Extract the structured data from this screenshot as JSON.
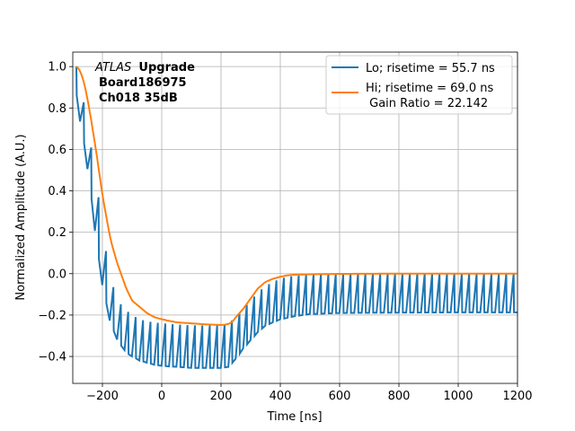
{
  "chart_data": {
    "type": "line",
    "xlabel": "Time [ns]",
    "ylabel": "Normalized Amplitude (A.U.)",
    "xlim": [
      -300,
      1200
    ],
    "ylim": [
      -0.53,
      1.07
    ],
    "xticks": [
      -200,
      0,
      200,
      400,
      600,
      800,
      1000,
      1200
    ],
    "yticks": [
      -0.4,
      -0.2,
      0.0,
      0.2,
      0.4,
      0.6,
      0.8,
      1.0
    ],
    "xtick_labels": [
      "−200",
      "0",
      "200",
      "400",
      "600",
      "800",
      "1000",
      "1200"
    ],
    "ytick_labels": [
      "−0.4",
      "−0.2",
      "0.0",
      "0.2",
      "0.4",
      "0.6",
      "0.8",
      "1.0"
    ],
    "grid": true,
    "legend_position": "top-right",
    "annotation": {
      "experiment_italic": "ATLAS",
      "experiment_bold": "Upgrade",
      "board": "Board186975",
      "channel": "Ch018 35dB"
    },
    "series": [
      {
        "name": "Lo; risetime = 55.7 ns",
        "color": "#1f77b4",
        "step_ns": 25,
        "upper": {
          "x": [
            -288,
            -275,
            -262,
            -250,
            -237,
            -225,
            -212,
            -200,
            -187,
            -175,
            -162,
            -150,
            -137,
            -125,
            -100,
            -75,
            -50,
            -25,
            0,
            50,
            100,
            150,
            200,
            225,
            250,
            275,
            300,
            325,
            350,
            375,
            400,
            425,
            450,
            500,
            600,
            800,
            1000,
            1200
          ],
          "y": [
            1.0,
            0.92,
            0.82,
            0.72,
            0.6,
            0.48,
            0.36,
            0.22,
            0.1,
            0.0,
            -0.07,
            -0.12,
            -0.15,
            -0.17,
            -0.2,
            -0.22,
            -0.23,
            -0.235,
            -0.24,
            -0.245,
            -0.25,
            -0.25,
            -0.25,
            -0.24,
            -0.21,
            -0.17,
            -0.13,
            -0.09,
            -0.06,
            -0.04,
            -0.025,
            -0.015,
            -0.01,
            -0.005,
            -0.002,
            0.0,
            0.0,
            0.0
          ]
        },
        "lower": {
          "x": [
            -288,
            -275,
            -262,
            -250,
            -237,
            -225,
            -212,
            -200,
            -187,
            -175,
            -162,
            -150,
            -137,
            -125,
            -112,
            -100,
            -75,
            -50,
            -25,
            0,
            50,
            100,
            150,
            200,
            225,
            250,
            275,
            300,
            325,
            350,
            400,
            450,
            500,
            600,
            800,
            1000,
            1200
          ],
          "y": [
            0.86,
            0.73,
            0.62,
            0.5,
            0.35,
            0.2,
            0.06,
            -0.06,
            -0.15,
            -0.23,
            -0.28,
            -0.32,
            -0.35,
            -0.37,
            -0.39,
            -0.4,
            -0.42,
            -0.43,
            -0.44,
            -0.445,
            -0.45,
            -0.455,
            -0.455,
            -0.455,
            -0.45,
            -0.41,
            -0.36,
            -0.32,
            -0.28,
            -0.25,
            -0.22,
            -0.205,
            -0.195,
            -0.19,
            -0.188,
            -0.187,
            -0.187
          ]
        }
      },
      {
        "name": "Hi; risetime = 69.0 ns\n Gain Ratio = 22.142",
        "name_line1": "Hi; risetime = 69.0 ns",
        "name_line2": " Gain Ratio = 22.142",
        "color": "#ff7f0e",
        "x": [
          -288,
          -280,
          -270,
          -260,
          -250,
          -240,
          -230,
          -220,
          -210,
          -200,
          -190,
          -180,
          -170,
          -160,
          -150,
          -140,
          -130,
          -120,
          -110,
          -100,
          -75,
          -50,
          -25,
          0,
          25,
          50,
          100,
          150,
          200,
          210,
          220,
          230,
          240,
          250,
          275,
          300,
          325,
          350,
          375,
          400,
          425,
          450,
          500,
          550,
          600,
          800,
          1000,
          1200
        ],
        "y": [
          1.0,
          0.99,
          0.96,
          0.91,
          0.84,
          0.76,
          0.67,
          0.58,
          0.48,
          0.38,
          0.3,
          0.22,
          0.15,
          0.1,
          0.05,
          0.01,
          -0.03,
          -0.07,
          -0.1,
          -0.13,
          -0.16,
          -0.19,
          -0.21,
          -0.22,
          -0.228,
          -0.235,
          -0.24,
          -0.245,
          -0.248,
          -0.247,
          -0.245,
          -0.24,
          -0.23,
          -0.21,
          -0.17,
          -0.12,
          -0.07,
          -0.04,
          -0.025,
          -0.015,
          -0.008,
          -0.005,
          -0.003,
          -0.002,
          -0.001,
          0.0,
          0.0,
          0.0
        ]
      }
    ]
  }
}
